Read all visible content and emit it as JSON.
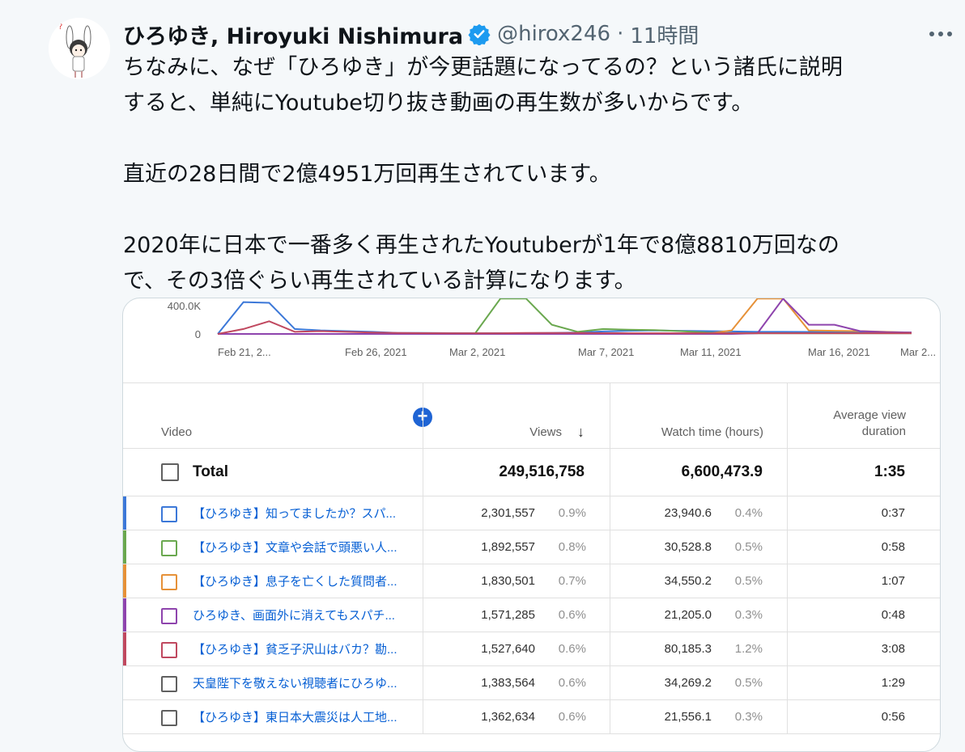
{
  "tweet": {
    "display_name": "ひろゆき, Hiroyuki Nishimura",
    "handle": "@hirox246",
    "separator": "·",
    "time": "11時間",
    "lines": [
      "ちなみに、なぜ「ひろゆき」が今更話題になってるの？という諸氏に説明",
      "すると、単純にYoutube切り抜き動画の再生数が多いからです。",
      "",
      "直近の28日間で2億4951万回再生されています。",
      "",
      "2020年に日本で一番多く再生されたYoutuberが1年で8億8810万回なの",
      "で、その3倍ぐらい再生されている計算になります。"
    ],
    "avatar_mark": "?"
  },
  "chart_data": {
    "type": "line",
    "y_tick_labels": [
      "400.0K",
      "0"
    ],
    "x_tick_labels": [
      "Feb 21, 2...",
      "Feb 26, 2021",
      "Mar 2, 2021",
      "Mar 7, 2021",
      "Mar 11, 2021",
      "Mar 16, 2021",
      "Mar 2..."
    ],
    "ylim": [
      0,
      480000
    ],
    "series": [
      {
        "color": "#3c78d8",
        "values": [
          0,
          450000,
          440000,
          70000,
          50000,
          40000,
          30000,
          15000,
          15000,
          12000,
          10000,
          12000,
          12000,
          15000,
          20000,
          35000,
          45000,
          50000,
          45000,
          40000,
          35000,
          30000,
          30000,
          28000,
          25000,
          25000,
          22000,
          20000
        ]
      },
      {
        "color": "#6aa84f",
        "values": [
          0,
          0,
          0,
          0,
          0,
          0,
          0,
          0,
          0,
          0,
          0,
          500000,
          500000,
          130000,
          30000,
          70000,
          60000,
          55000,
          40000,
          20000,
          10000,
          10000,
          10000,
          10000,
          10000,
          10000,
          10000,
          10000
        ]
      },
      {
        "color": "#e69138",
        "values": [
          0,
          0,
          0,
          0,
          0,
          0,
          0,
          0,
          0,
          0,
          0,
          0,
          0,
          0,
          0,
          0,
          0,
          0,
          0,
          0,
          50000,
          500000,
          500000,
          50000,
          45000,
          40000,
          30000,
          20000
        ]
      },
      {
        "color": "#8e44ad",
        "values": [
          0,
          0,
          0,
          0,
          0,
          0,
          0,
          0,
          0,
          0,
          0,
          0,
          0,
          0,
          0,
          0,
          0,
          0,
          0,
          0,
          0,
          10000,
          500000,
          130000,
          130000,
          40000,
          25000,
          20000
        ]
      },
      {
        "color": "#c0485f",
        "values": [
          0,
          70000,
          180000,
          30000,
          40000,
          30000,
          20000,
          15000,
          12000,
          10000,
          10000,
          10000,
          15000,
          15000,
          15000,
          12000,
          10000,
          10000,
          10000,
          10000,
          10000,
          10000,
          10000,
          10000,
          10000,
          10000,
          10000,
          10000
        ]
      }
    ]
  },
  "table": {
    "headers": {
      "video": "Video",
      "views": "Views",
      "sort_arrow": "↓",
      "watch": "Watch time (hours)",
      "avg_line1": "Average view",
      "avg_line2": "duration"
    },
    "add_button": "+",
    "total": {
      "label": "Total",
      "views": "249,516,758",
      "watch": "6,600,473.9",
      "avg": "1:35"
    },
    "rows": [
      {
        "title": "【ひろゆき】知ってましたか？スパ...",
        "views": "2,301,557",
        "views_pct": "0.9%",
        "watch": "23,940.6",
        "watch_pct": "0.4%",
        "avg": "0:37",
        "color": "#3c78d8",
        "checkbox_color": "#3c78d8"
      },
      {
        "title": "【ひろゆき】文章や会話で頭悪い人...",
        "views": "1,892,557",
        "views_pct": "0.8%",
        "watch": "30,528.8",
        "watch_pct": "0.5%",
        "avg": "0:58",
        "color": "#6aa84f",
        "checkbox_color": "#6aa84f"
      },
      {
        "title": "【ひろゆき】息子を亡くした質問者...",
        "views": "1,830,501",
        "views_pct": "0.7%",
        "watch": "34,550.2",
        "watch_pct": "0.5%",
        "avg": "1:07",
        "color": "#e69138",
        "checkbox_color": "#e69138"
      },
      {
        "title": "ひろゆき、画面外に消えてもスパチ...",
        "views": "1,571,285",
        "views_pct": "0.6%",
        "watch": "21,205.0",
        "watch_pct": "0.3%",
        "avg": "0:48",
        "color": "#8e44ad",
        "checkbox_color": "#8e44ad"
      },
      {
        "title": "【ひろゆき】貧乏子沢山はバカ？勘...",
        "views": "1,527,640",
        "views_pct": "0.6%",
        "watch": "80,185.3",
        "watch_pct": "1.2%",
        "avg": "3:08",
        "color": "#c0485f",
        "checkbox_color": "#c0485f"
      },
      {
        "title": "天皇陛下を敬えない視聴者にひろゆ...",
        "views": "1,383,564",
        "views_pct": "0.6%",
        "watch": "34,269.2",
        "watch_pct": "0.5%",
        "avg": "1:29",
        "color": "",
        "checkbox_color": "#606060"
      },
      {
        "title": "【ひろゆき】東日本大震災は人工地...",
        "views": "1,362,634",
        "views_pct": "0.6%",
        "watch": "21,556.1",
        "watch_pct": "0.3%",
        "avg": "0:56",
        "color": "",
        "checkbox_color": "#606060"
      }
    ]
  }
}
